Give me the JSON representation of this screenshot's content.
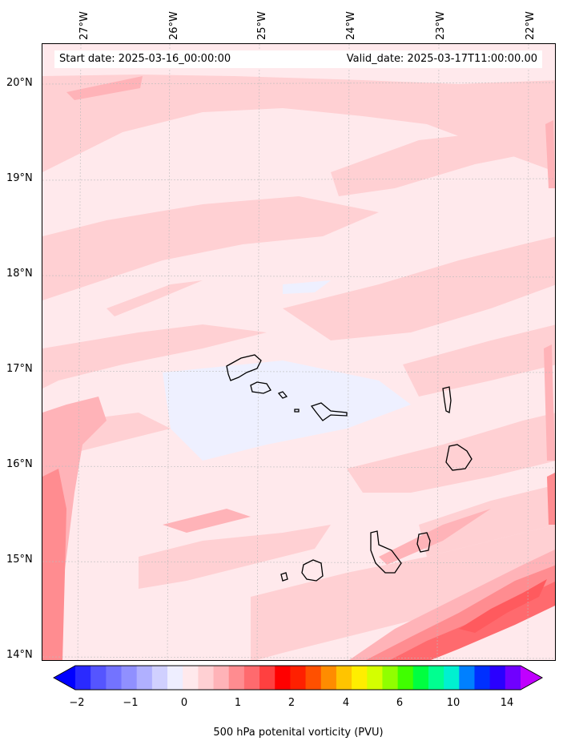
{
  "map": {
    "lon_labels": [
      "27°W",
      "26°W",
      "25°W",
      "24°W",
      "23°W",
      "22°W"
    ],
    "lat_labels": [
      "20°N",
      "19°N",
      "18°N",
      "17°N",
      "16°N",
      "15°N",
      "14°N"
    ],
    "start_date": "Start date: 2025-03-16_00:00:00",
    "valid_date": "Valid_date: 2025-03-17T11:00:00.00",
    "background_color": "#ffe9ec",
    "colors": {
      "light_pink": "#ffd0d3",
      "pink": "#ffb3b8",
      "salmon": "#ff8c90",
      "red": "#ff5a5e",
      "pale_blue": "#eef0ff",
      "coast": "#000000"
    }
  },
  "colorbar": {
    "tick_labels": [
      "−2",
      "−1",
      "0",
      "1",
      "2",
      "4",
      "6",
      "10",
      "14"
    ],
    "label": "500 hPa potenital vorticity (PVU)",
    "colors": [
      "#0000ff",
      "#2a2aff",
      "#5555ff",
      "#7373ff",
      "#9090ff",
      "#b0b0ff",
      "#d0d0ff",
      "#eeeeff",
      "#ffe9ec",
      "#ffd0d3",
      "#ffb3b8",
      "#ff8c90",
      "#ff6a6e",
      "#ff4040",
      "#ff0000",
      "#ff2000",
      "#ff5000",
      "#ff8c00",
      "#ffc400",
      "#ffee00",
      "#d4ff00",
      "#90ff00",
      "#40ff00",
      "#00ff40",
      "#00ff90",
      "#00f0d0",
      "#0080ff",
      "#0030ff",
      "#2a00ff",
      "#7000ff",
      "#c000ff"
    ]
  }
}
